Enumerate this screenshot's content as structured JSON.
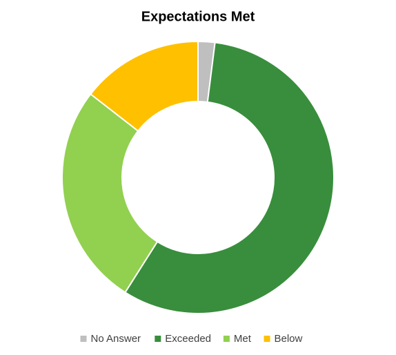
{
  "chart_data": {
    "type": "donut",
    "title": "Expectations Met",
    "categories": [
      "No Answer",
      "Exceeded",
      "Met",
      "Below"
    ],
    "values": [
      2,
      57,
      26.5,
      14.5
    ],
    "colors": [
      "#bfbfbf",
      "#388e3c",
      "#92d050",
      "#ffc000"
    ],
    "legend": "bottom"
  }
}
